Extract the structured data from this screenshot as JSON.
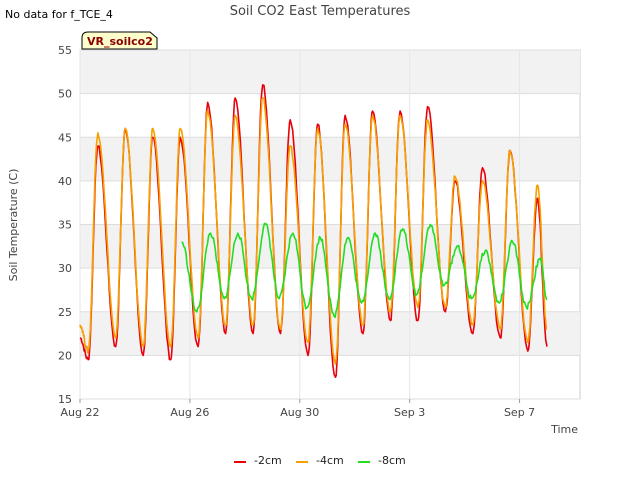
{
  "no_data_note": "No data for f_TCE_4",
  "badge_label": "VR_soilco2",
  "chart_data": {
    "type": "line",
    "title": "Soil CO2 East Temperatures",
    "xlabel": "Time",
    "ylabel": "Soil Temperature (C)",
    "x_unit": "days since Aug 22",
    "xlim": [
      0,
      18.2
    ],
    "ylim": [
      15,
      55
    ],
    "yticks": [
      15,
      20,
      25,
      30,
      35,
      40,
      45,
      50,
      55
    ],
    "xticks": [
      {
        "label": "Aug 22",
        "value": 0
      },
      {
        "label": "Aug 26",
        "value": 4
      },
      {
        "label": "Aug 30",
        "value": 8
      },
      {
        "label": "Sep 3",
        "value": 12
      },
      {
        "label": "Sep 7",
        "value": 16
      }
    ],
    "grid": true,
    "legend_position": "bottom",
    "series": [
      {
        "name": "-2cm",
        "color": "#e8000b",
        "daily_extremes": [
          [
            0.0,
            22.0
          ],
          [
            0.3,
            19.5
          ],
          [
            0.65,
            44.0
          ],
          [
            1.3,
            21.0
          ],
          [
            1.65,
            46.0
          ],
          [
            2.3,
            20.0
          ],
          [
            2.65,
            45.0
          ],
          [
            3.3,
            19.5
          ],
          [
            3.65,
            45.0
          ],
          [
            4.3,
            21.0
          ],
          [
            4.65,
            49.0
          ],
          [
            5.3,
            22.5
          ],
          [
            5.65,
            49.5
          ],
          [
            6.3,
            22.5
          ],
          [
            6.65,
            51.0
          ],
          [
            7.3,
            22.5
          ],
          [
            7.65,
            47.0
          ],
          [
            8.3,
            20.0
          ],
          [
            8.65,
            46.5
          ],
          [
            9.3,
            17.5
          ],
          [
            9.65,
            47.5
          ],
          [
            10.3,
            22.5
          ],
          [
            10.65,
            48.0
          ],
          [
            11.3,
            24.0
          ],
          [
            11.65,
            48.0
          ],
          [
            12.3,
            24.0
          ],
          [
            12.65,
            48.5
          ],
          [
            13.3,
            25.0
          ],
          [
            13.65,
            40.0
          ],
          [
            14.3,
            22.5
          ],
          [
            14.65,
            41.5
          ],
          [
            15.3,
            22.0
          ],
          [
            15.65,
            43.5
          ],
          [
            16.3,
            20.5
          ],
          [
            16.65,
            38.0
          ],
          [
            17.0,
            21.0
          ]
        ]
      },
      {
        "name": "-4cm",
        "color": "#f5a000",
        "daily_extremes": [
          [
            0.0,
            23.5
          ],
          [
            0.3,
            20.5
          ],
          [
            0.65,
            45.5
          ],
          [
            1.3,
            22.0
          ],
          [
            1.65,
            46.0
          ],
          [
            2.3,
            21.0
          ],
          [
            2.65,
            46.0
          ],
          [
            3.3,
            21.0
          ],
          [
            3.65,
            46.0
          ],
          [
            4.3,
            22.0
          ],
          [
            4.65,
            48.0
          ],
          [
            5.3,
            23.5
          ],
          [
            5.65,
            47.5
          ],
          [
            6.3,
            23.5
          ],
          [
            6.65,
            49.5
          ],
          [
            7.3,
            23.0
          ],
          [
            7.65,
            44.0
          ],
          [
            8.3,
            21.5
          ],
          [
            8.65,
            46.0
          ],
          [
            9.3,
            19.0
          ],
          [
            9.65,
            46.5
          ],
          [
            10.3,
            23.5
          ],
          [
            10.65,
            47.5
          ],
          [
            11.3,
            25.0
          ],
          [
            11.65,
            47.5
          ],
          [
            12.3,
            25.5
          ],
          [
            12.65,
            47.0
          ],
          [
            13.3,
            25.5
          ],
          [
            13.65,
            40.5
          ],
          [
            14.3,
            23.5
          ],
          [
            14.65,
            40.0
          ],
          [
            15.3,
            23.0
          ],
          [
            15.65,
            43.5
          ],
          [
            16.3,
            21.5
          ],
          [
            16.65,
            39.5
          ],
          [
            17.0,
            23.0
          ]
        ]
      },
      {
        "name": "-8cm",
        "color": "#22dd22",
        "daily_extremes": [
          [
            3.7,
            33.0
          ],
          [
            4.25,
            25.0
          ],
          [
            4.75,
            34.0
          ],
          [
            5.25,
            26.5
          ],
          [
            5.75,
            34.0
          ],
          [
            6.25,
            26.5
          ],
          [
            6.75,
            35.0
          ],
          [
            7.25,
            26.5
          ],
          [
            7.75,
            34.0
          ],
          [
            8.25,
            25.5
          ],
          [
            8.75,
            33.5
          ],
          [
            9.25,
            24.5
          ],
          [
            9.75,
            33.5
          ],
          [
            10.25,
            26.0
          ],
          [
            10.75,
            34.0
          ],
          [
            11.25,
            26.5
          ],
          [
            11.75,
            34.5
          ],
          [
            12.25,
            27.0
          ],
          [
            12.75,
            35.0
          ],
          [
            13.25,
            28.0
          ],
          [
            13.75,
            32.5
          ],
          [
            14.25,
            26.5
          ],
          [
            14.75,
            32.0
          ],
          [
            15.25,
            26.0
          ],
          [
            15.75,
            33.0
          ],
          [
            16.25,
            25.5
          ],
          [
            16.75,
            31.0
          ],
          [
            17.0,
            26.5
          ]
        ]
      }
    ]
  }
}
